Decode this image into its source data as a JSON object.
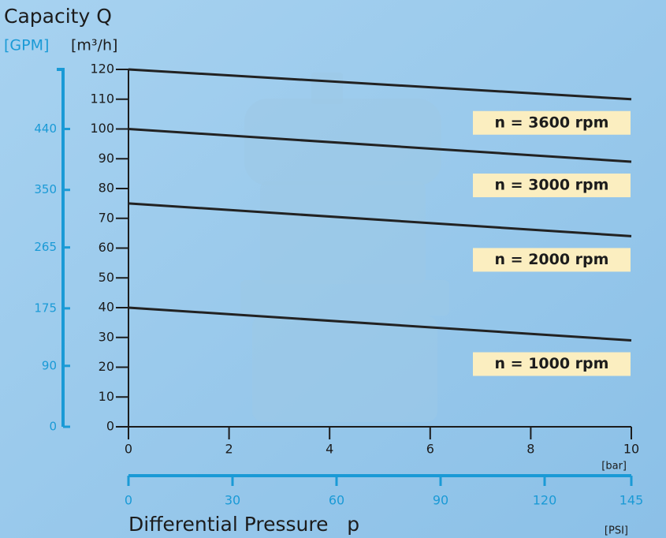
{
  "chart_data": {
    "type": "line",
    "title": "Capacity Q",
    "ylabel": "[m³/h]",
    "y2label": "[GPM]",
    "xlabel": "Differential Pressure   p",
    "xunit": "[bar]",
    "x2unit": "[PSI]",
    "x": [
      0,
      10
    ],
    "series": [
      {
        "name": "n = 3600 rpm",
        "color": "#222222",
        "values": [
          120,
          110
        ]
      },
      {
        "name": "n = 3000 rpm",
        "color": "#222222",
        "values": [
          100,
          89
        ]
      },
      {
        "name": "n = 2000 rpm",
        "color": "#222222",
        "values": [
          75,
          64
        ]
      },
      {
        "name": "n = 1000 rpm",
        "color": "#222222",
        "values": [
          40,
          29
        ]
      }
    ],
    "xlim": [
      0,
      10
    ],
    "xticks": [
      0,
      2,
      4,
      6,
      8,
      10
    ],
    "x2lim": [
      0,
      145
    ],
    "x2ticks": [
      0,
      30,
      60,
      90,
      120,
      145
    ],
    "ylim": [
      0,
      120
    ],
    "yticks": [
      0,
      10,
      20,
      30,
      40,
      50,
      60,
      70,
      80,
      90,
      100,
      110,
      120
    ],
    "y2lim": [
      0,
      528
    ],
    "y2ticks": [
      0,
      90,
      175,
      265,
      350,
      440
    ],
    "label_color": "#fbeec0",
    "secondary_color": "#1a9ad6"
  }
}
